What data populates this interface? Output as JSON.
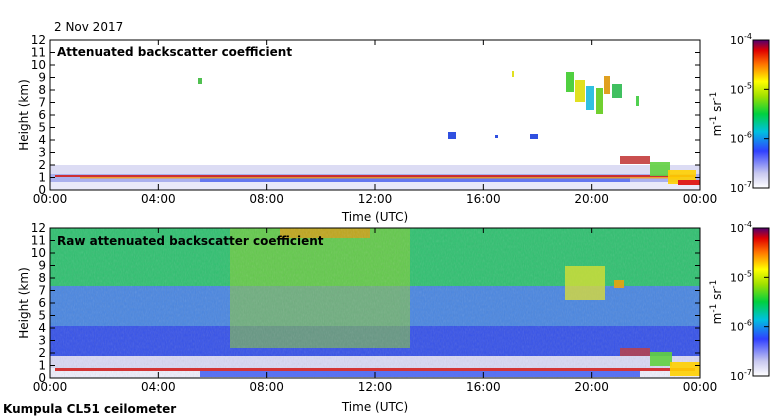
{
  "date_label": "2 Nov 2017",
  "footer_label": "Kumpula CL51 ceilometer",
  "chart_data": [
    {
      "type": "heatmap",
      "title": "Attenuated backscatter coefficient",
      "xlabel": "Time (UTC)",
      "ylabel": "Height (km)",
      "x_ticks": [
        "00:00",
        "04:00",
        "08:00",
        "12:00",
        "16:00",
        "20:00",
        "00:00"
      ],
      "y_ticks": [
        "0",
        "1",
        "2",
        "3",
        "4",
        "5",
        "6",
        "7",
        "8",
        "9",
        "10",
        "11",
        "12"
      ],
      "ylim": [
        0,
        12
      ],
      "colorbar": {
        "unit_base": "m",
        "unit_exp1": "-1",
        "unit_sr": "sr",
        "unit_exp2": "-1",
        "scale": "log",
        "ticks": [
          {
            "base": "10",
            "exp": "-4"
          },
          {
            "base": "10",
            "exp": "-5"
          },
          {
            "base": "10",
            "exp": "-6"
          },
          {
            "base": "10",
            "exp": "-7"
          }
        ]
      }
    },
    {
      "type": "heatmap",
      "title": "Raw attenuated backscatter coefficient",
      "xlabel": "Time (UTC)",
      "ylabel": "Height (km)",
      "x_ticks": [
        "00:00",
        "04:00",
        "08:00",
        "12:00",
        "16:00",
        "20:00",
        "00:00"
      ],
      "y_ticks": [
        "0",
        "1",
        "2",
        "3",
        "4",
        "5",
        "6",
        "7",
        "8",
        "9",
        "10",
        "11",
        "12"
      ],
      "ylim": [
        0,
        12
      ],
      "colorbar": {
        "unit_base": "m",
        "unit_exp1": "-1",
        "unit_sr": "sr",
        "unit_exp2": "-1",
        "scale": "log",
        "ticks": [
          {
            "base": "10",
            "exp": "-4"
          },
          {
            "base": "10",
            "exp": "-5"
          },
          {
            "base": "10",
            "exp": "-6"
          },
          {
            "base": "10",
            "exp": "-7"
          }
        ]
      }
    }
  ]
}
